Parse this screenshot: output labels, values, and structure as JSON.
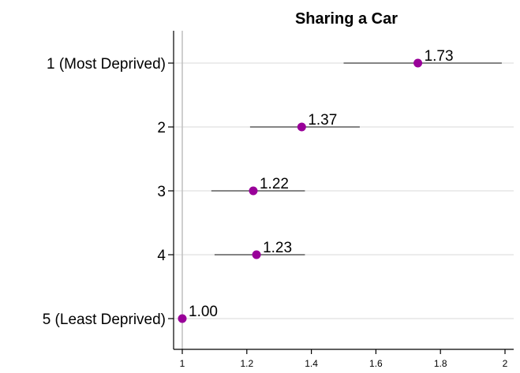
{
  "chart_data": {
    "type": "scatter",
    "title": "Sharing a Car",
    "xlabel": "",
    "ylabel": "",
    "xlim": [
      1,
      2
    ],
    "x_ticks": [
      {
        "value": 1,
        "label": "1"
      },
      {
        "value": 1.2,
        "label": "1.2"
      },
      {
        "value": 1.4,
        "label": "1.4"
      },
      {
        "value": 1.6,
        "label": "1.6"
      },
      {
        "value": 1.8,
        "label": "1.8"
      },
      {
        "value": 2,
        "label": "2"
      }
    ],
    "grid": true,
    "reference_line_x": 1,
    "series": [
      {
        "name": "",
        "points": [
          {
            "category": "1 (Most Deprived)",
            "estimate": 1.73,
            "lower": 1.5,
            "upper": 1.99,
            "label": "1.73"
          },
          {
            "category": "2",
            "estimate": 1.37,
            "lower": 1.21,
            "upper": 1.55,
            "label": "1.37"
          },
          {
            "category": "3",
            "estimate": 1.22,
            "lower": 1.09,
            "upper": 1.38,
            "label": "1.22"
          },
          {
            "category": "4",
            "estimate": 1.23,
            "lower": 1.1,
            "upper": 1.38,
            "label": "1.23"
          },
          {
            "category": "5 (Least Deprived)",
            "estimate": 1.0,
            "lower": 1.0,
            "upper": 1.0,
            "label": "1.00"
          }
        ]
      }
    ],
    "colors": {
      "marker": "#990099",
      "ci_line": "#606060",
      "grid": "#e6e6e6",
      "reference": "#bfbfbf",
      "axis": "#000000"
    }
  }
}
